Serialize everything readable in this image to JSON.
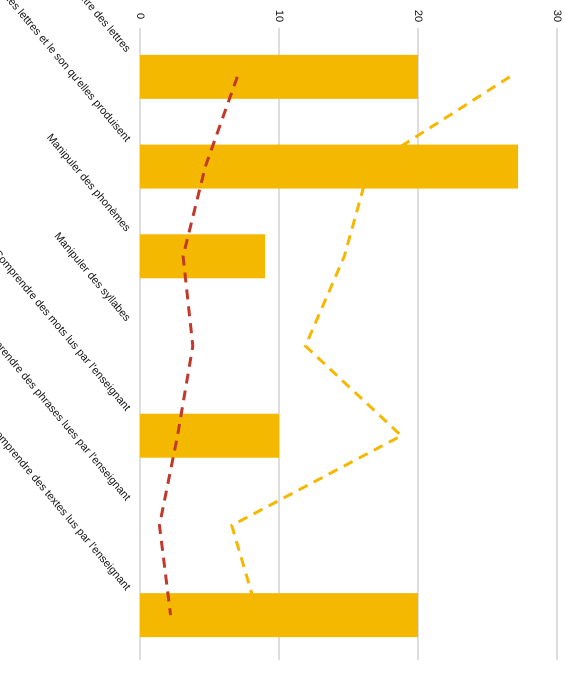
{
  "chart_data": {
    "type": "bar",
    "categories": [
      "Reconnaître des lettres",
      "Connaître le nom des lettres et le son qu'elles produisent",
      "Manipuler des phonèmes",
      "Manipuler des syllabes",
      "Comprendre des mots lus par l'enseignant",
      "Comprendre des phrases lues par l'enseignant",
      "Comprendre des textes lus par l'enseignant"
    ],
    "series": [
      {
        "type": "bar",
        "color": "#f5b800",
        "values": [
          20,
          27.2,
          9,
          null,
          10,
          null,
          20
        ]
      },
      {
        "type": "line",
        "color": "#c0392b",
        "dashed": true,
        "values": [
          7.0,
          4.7,
          3.1,
          3.8,
          2.7,
          1.4,
          2.2
        ]
      },
      {
        "type": "line",
        "color": "#f5b800",
        "dashed": true,
        "values": [
          26.6,
          16.5,
          14.7,
          11.9,
          18.8,
          6.6,
          8.5
        ]
      }
    ],
    "ylim": [
      0,
      30
    ],
    "yticks": [
      0,
      10,
      20,
      30
    ],
    "grid": true
  }
}
